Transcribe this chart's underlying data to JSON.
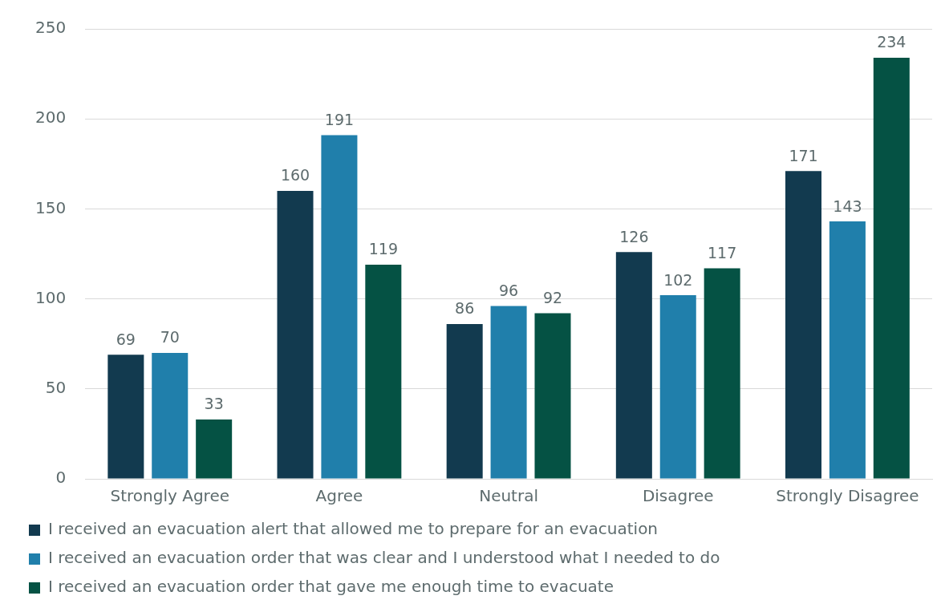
{
  "chart_data": {
    "type": "bar",
    "categories": [
      "Strongly Agree",
      "Agree",
      "Neutral",
      "Disagree",
      "Strongly Disagree"
    ],
    "series": [
      {
        "name": "I received an evacuation alert that allowed me to prepare for an evacuation",
        "color": "#123a4f",
        "values": [
          69,
          160,
          86,
          126,
          171
        ]
      },
      {
        "name": "I received an evacuation order that was clear and I understood what I needed to do",
        "color": "#207fab",
        "values": [
          70,
          191,
          96,
          102,
          143
        ]
      },
      {
        "name": "I received an evacuation order that gave me enough time to evacuate",
        "color": "#055244",
        "values": [
          33,
          119,
          92,
          117,
          234
        ]
      }
    ],
    "ylim": [
      0,
      250
    ],
    "yticks": [
      0,
      50,
      100,
      150,
      200,
      250
    ],
    "grid": "y",
    "legend": "bottom",
    "data_labels": true
  }
}
